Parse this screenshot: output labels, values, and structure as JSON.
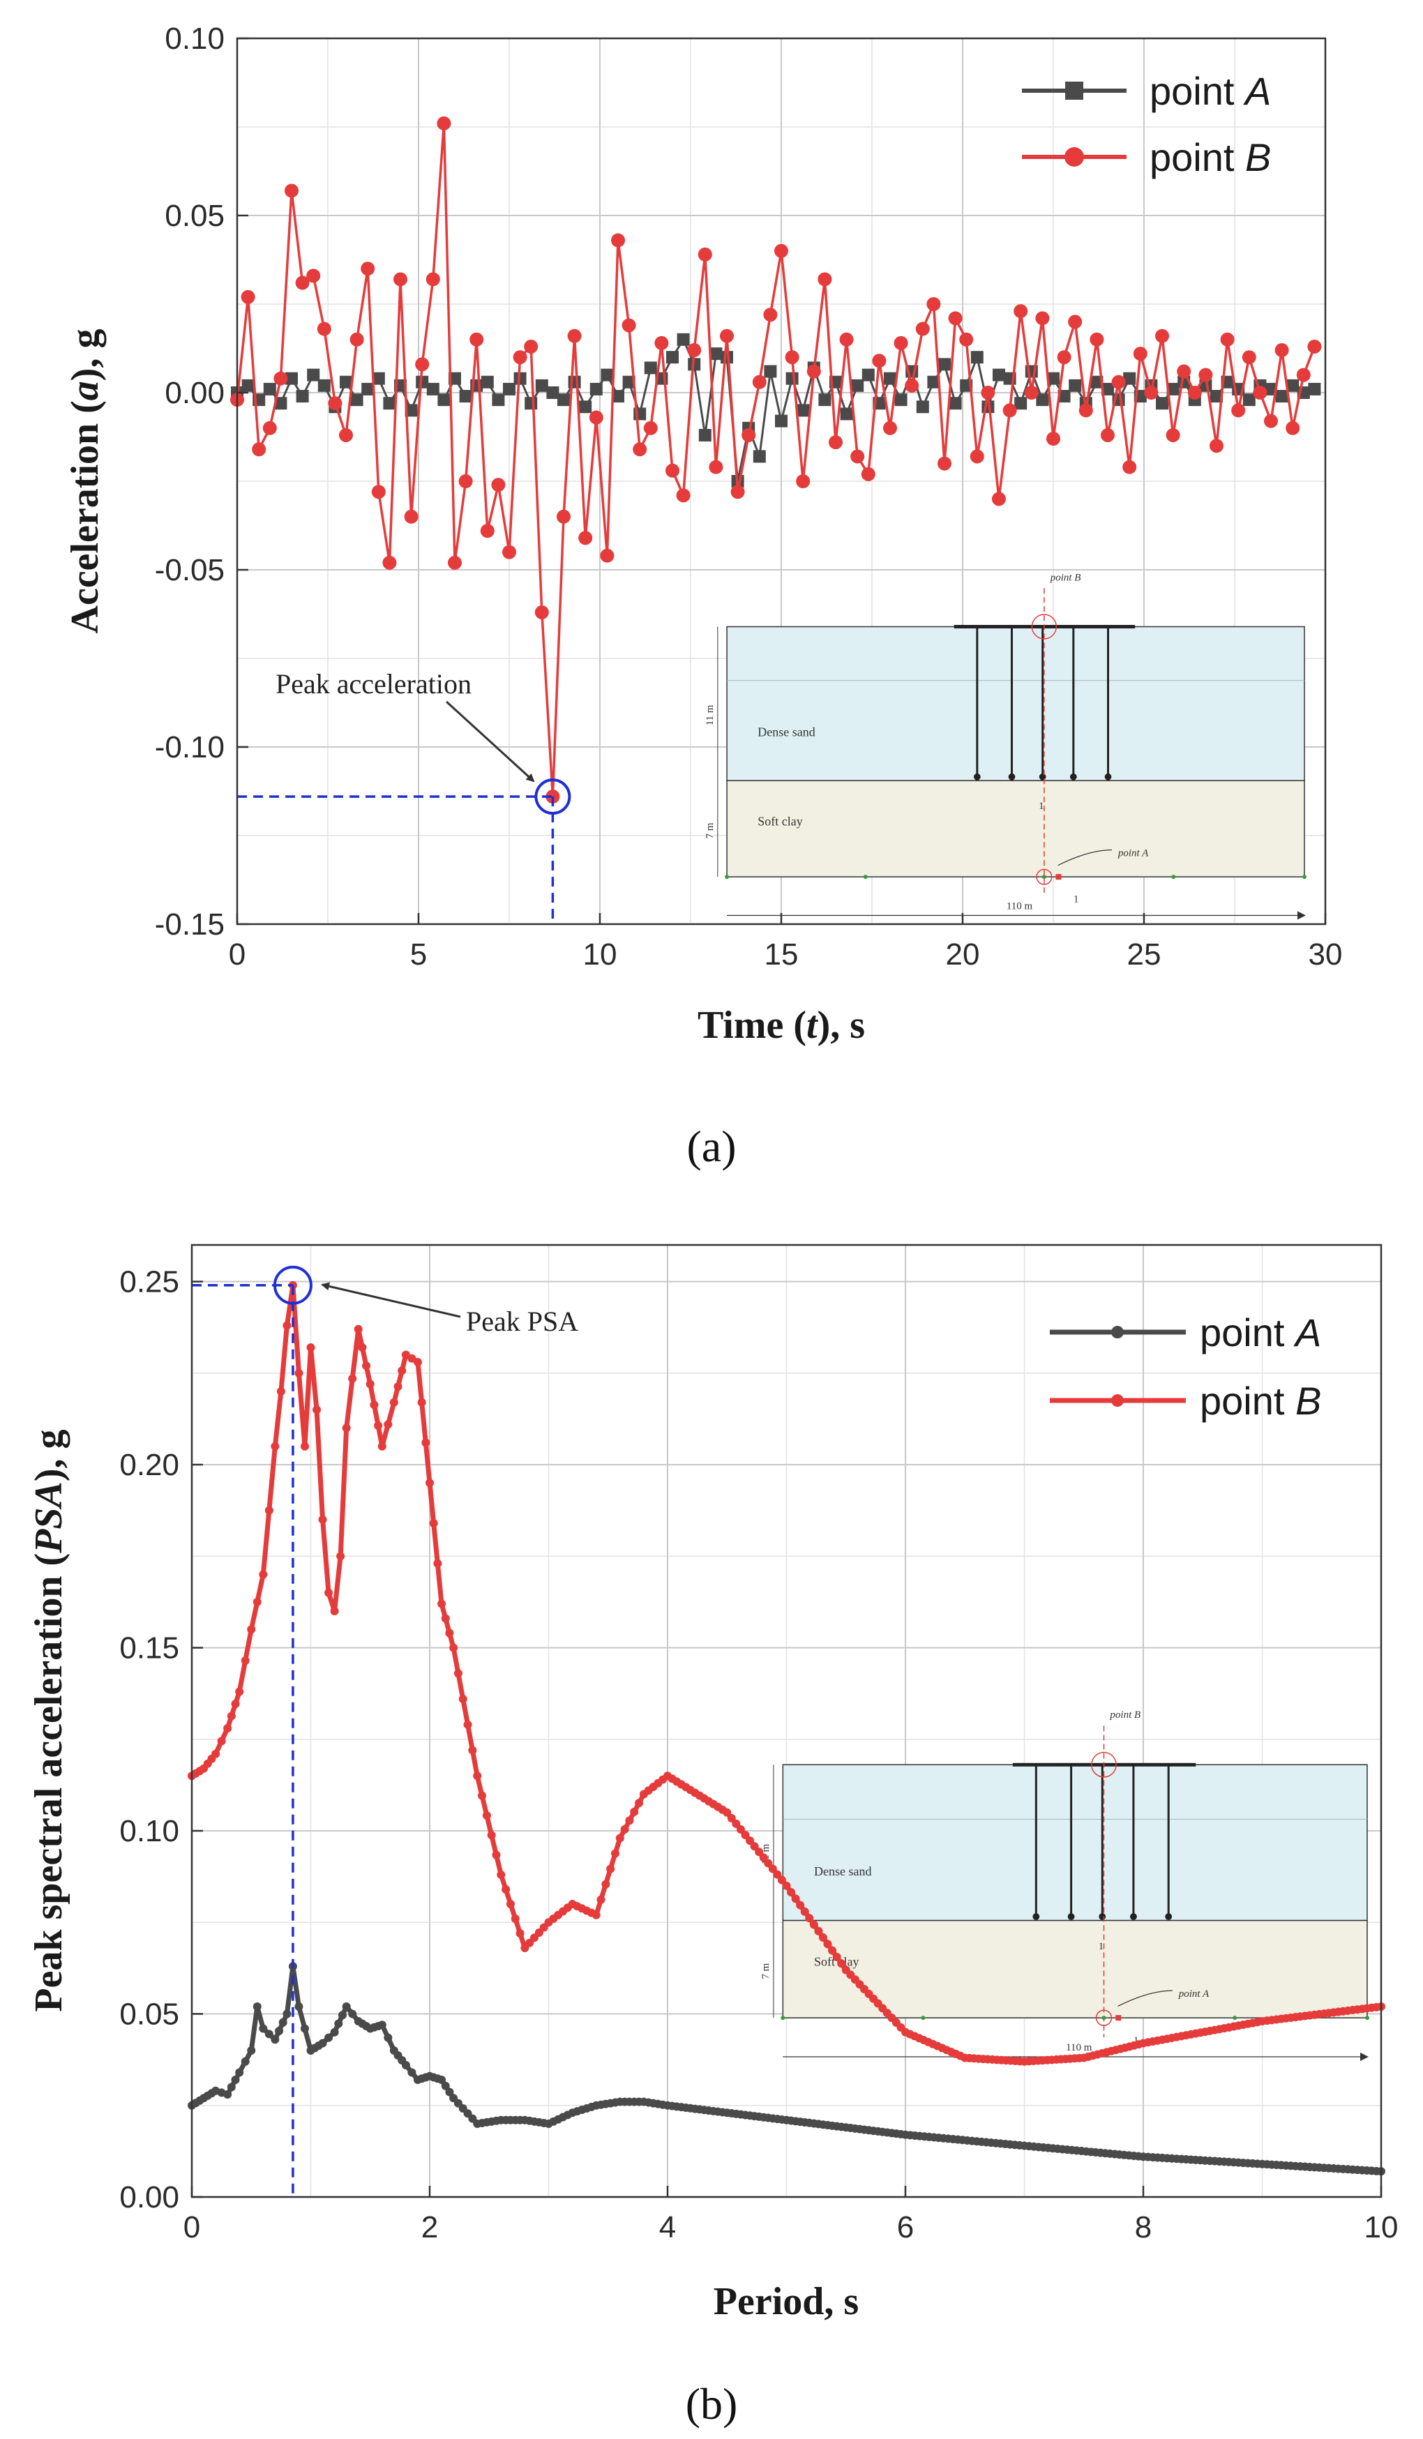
{
  "colors": {
    "point_a": "#4a4a4a",
    "point_b": "#e53b3b",
    "guide": "#1f2fd6",
    "grid": "#c8c8c8",
    "sand": "#dff0f4",
    "clay": "#f1f0e2"
  },
  "chart_data": [
    {
      "type": "line",
      "panel_label": "(a)",
      "xlabel_parts": [
        "Time (",
        "t",
        "), s"
      ],
      "ylabel_parts": [
        "Acceleration (",
        "a",
        "), g"
      ],
      "xlim": [
        0,
        30
      ],
      "ylim": [
        -0.15,
        0.1
      ],
      "x_ticks": [
        "0",
        "5",
        "10",
        "15",
        "20",
        "25",
        "30"
      ],
      "y_ticks": [
        "-0.15",
        "-0.10",
        "-0.05",
        "0.00",
        "0.05",
        "0.10"
      ],
      "grid": true,
      "legend": {
        "placement": "top-right",
        "entries": [
          {
            "prefix": "point ",
            "italic": "A"
          },
          {
            "prefix": "point ",
            "italic": "B"
          }
        ]
      },
      "annotation": {
        "text": "Peak acceleration",
        "x": 8.7,
        "y": -0.114
      },
      "inset": {
        "point_b": "point B",
        "point_a": "point A",
        "dense_sand": "Dense sand",
        "soft_clay": "Soft clay",
        "depth_sand": "11 m",
        "depth_clay": "7 m",
        "width": "110 m",
        "marker_1a": "1",
        "marker_1b": "1"
      },
      "series": [
        {
          "name": "point A",
          "x": [
            0.0,
            0.3,
            0.6,
            0.9,
            1.2,
            1.5,
            1.8,
            2.1,
            2.4,
            2.7,
            3.0,
            3.3,
            3.6,
            3.9,
            4.2,
            4.5,
            4.8,
            5.1,
            5.4,
            5.7,
            6.0,
            6.3,
            6.6,
            6.9,
            7.2,
            7.5,
            7.8,
            8.1,
            8.4,
            8.7,
            9.0,
            9.3,
            9.6,
            9.9,
            10.2,
            10.5,
            10.8,
            11.1,
            11.4,
            11.7,
            12.0,
            12.3,
            12.6,
            12.9,
            13.2,
            13.5,
            13.8,
            14.1,
            14.4,
            14.7,
            15.0,
            15.3,
            15.6,
            15.9,
            16.2,
            16.5,
            16.8,
            17.1,
            17.4,
            17.7,
            18.0,
            18.3,
            18.6,
            18.9,
            19.2,
            19.5,
            19.8,
            20.1,
            20.4,
            20.7,
            21.0,
            21.3,
            21.6,
            21.9,
            22.2,
            22.5,
            22.8,
            23.1,
            23.4,
            23.7,
            24.0,
            24.3,
            24.6,
            24.9,
            25.2,
            25.5,
            25.8,
            26.1,
            26.4,
            26.7,
            27.0,
            27.3,
            27.6,
            27.9,
            28.2,
            28.5,
            28.8,
            29.1,
            29.4,
            29.7
          ],
          "values": [
            0.0,
            0.002,
            -0.002,
            0.001,
            -0.003,
            0.004,
            -0.001,
            0.005,
            0.002,
            -0.004,
            0.003,
            -0.002,
            0.001,
            0.004,
            -0.003,
            0.002,
            -0.005,
            0.003,
            0.001,
            -0.002,
            0.004,
            -0.001,
            0.002,
            0.003,
            -0.002,
            0.001,
            0.004,
            -0.003,
            0.002,
            0.0,
            -0.002,
            0.003,
            -0.004,
            0.001,
            0.005,
            -0.001,
            0.003,
            -0.006,
            0.007,
            0.004,
            0.01,
            0.015,
            0.008,
            -0.012,
            0.011,
            0.01,
            -0.025,
            -0.01,
            -0.018,
            0.006,
            -0.008,
            0.004,
            -0.005,
            0.007,
            -0.002,
            0.003,
            -0.006,
            0.002,
            0.005,
            -0.003,
            0.004,
            -0.002,
            0.006,
            -0.004,
            0.003,
            0.008,
            -0.003,
            0.002,
            0.01,
            -0.004,
            0.005,
            0.004,
            -0.003,
            0.006,
            -0.002,
            0.004,
            -0.001,
            0.002,
            -0.003,
            0.003,
            0.001,
            -0.002,
            0.004,
            -0.001,
            0.002,
            -0.003,
            0.001,
            0.003,
            -0.002,
            0.002,
            -0.001,
            0.003,
            0.001,
            -0.002,
            0.002,
            0.001,
            -0.001,
            0.002,
            0.0,
            0.001
          ]
        },
        {
          "name": "point B",
          "x": [
            0.0,
            0.3,
            0.6,
            0.9,
            1.2,
            1.5,
            1.8,
            2.1,
            2.4,
            2.7,
            3.0,
            3.3,
            3.6,
            3.9,
            4.2,
            4.5,
            4.8,
            5.1,
            5.4,
            5.7,
            6.0,
            6.3,
            6.6,
            6.9,
            7.2,
            7.5,
            7.8,
            8.1,
            8.4,
            8.7,
            9.0,
            9.3,
            9.6,
            9.9,
            10.2,
            10.5,
            10.8,
            11.1,
            11.4,
            11.7,
            12.0,
            12.3,
            12.6,
            12.9,
            13.2,
            13.5,
            13.8,
            14.1,
            14.4,
            14.7,
            15.0,
            15.3,
            15.6,
            15.9,
            16.2,
            16.5,
            16.8,
            17.1,
            17.4,
            17.7,
            18.0,
            18.3,
            18.6,
            18.9,
            19.2,
            19.5,
            19.8,
            20.1,
            20.4,
            20.7,
            21.0,
            21.3,
            21.6,
            21.9,
            22.2,
            22.5,
            22.8,
            23.1,
            23.4,
            23.7,
            24.0,
            24.3,
            24.6,
            24.9,
            25.2,
            25.5,
            25.8,
            26.1,
            26.4,
            26.7,
            27.0,
            27.3,
            27.6,
            27.9,
            28.2,
            28.5,
            28.8,
            29.1,
            29.4,
            29.7
          ],
          "values": [
            -0.002,
            0.027,
            -0.016,
            -0.01,
            0.004,
            0.057,
            0.031,
            0.033,
            0.018,
            -0.003,
            -0.012,
            0.015,
            0.035,
            -0.028,
            -0.048,
            0.032,
            -0.035,
            0.008,
            0.032,
            0.076,
            -0.048,
            -0.025,
            0.015,
            -0.039,
            -0.026,
            -0.045,
            0.01,
            0.013,
            -0.062,
            -0.114,
            -0.035,
            0.016,
            -0.041,
            -0.007,
            -0.046,
            0.043,
            0.019,
            -0.016,
            -0.01,
            0.014,
            -0.022,
            -0.029,
            0.012,
            0.039,
            -0.021,
            0.016,
            -0.028,
            -0.012,
            0.003,
            0.022,
            0.04,
            0.01,
            -0.025,
            0.006,
            0.032,
            -0.014,
            0.015,
            -0.018,
            -0.023,
            0.009,
            -0.01,
            0.014,
            0.002,
            0.018,
            0.025,
            -0.02,
            0.021,
            0.015,
            -0.018,
            0.0,
            -0.03,
            -0.005,
            0.023,
            0.0,
            0.021,
            -0.013,
            0.01,
            0.02,
            -0.005,
            0.015,
            -0.012,
            0.003,
            -0.021,
            0.011,
            0.0,
            0.016,
            -0.012,
            0.006,
            0.0,
            0.005,
            -0.015,
            0.015,
            -0.005,
            0.01,
            0.0,
            -0.008,
            0.012,
            -0.01,
            0.005,
            0.013
          ]
        }
      ]
    },
    {
      "type": "line",
      "panel_label": "(b)",
      "xlabel_parts": [
        "Period, s"
      ],
      "ylabel_parts": [
        "Peak spectral acceleration (",
        "PSA",
        "), g"
      ],
      "xlim": [
        0,
        10
      ],
      "ylim": [
        0,
        0.26
      ],
      "x_ticks": [
        "0",
        "2",
        "4",
        "6",
        "8",
        "10"
      ],
      "y_ticks": [
        "0.00",
        "0.05",
        "0.10",
        "0.15",
        "0.20",
        "0.25"
      ],
      "grid": true,
      "legend": {
        "placement": "top-right",
        "entries": [
          {
            "prefix": "point ",
            "italic": "A"
          },
          {
            "prefix": "point ",
            "italic": "B"
          }
        ]
      },
      "annotation": {
        "text": "Peak PSA",
        "x": 0.85,
        "y": 0.249
      },
      "inset": {
        "point_b": "point B",
        "point_a": "point A",
        "dense_sand": "Dense sand",
        "soft_clay": "Soft clay",
        "depth_sand": "11 m",
        "depth_clay": "7 m",
        "width": "110 m",
        "marker_1a": "1",
        "marker_1b": "1"
      },
      "series": [
        {
          "name": "point A",
          "x": [
            0.0,
            0.1,
            0.2,
            0.3,
            0.4,
            0.5,
            0.55,
            0.6,
            0.7,
            0.8,
            0.85,
            0.9,
            1.0,
            1.1,
            1.2,
            1.3,
            1.4,
            1.5,
            1.6,
            1.7,
            1.8,
            1.9,
            2.0,
            2.1,
            2.2,
            2.4,
            2.6,
            2.8,
            3.0,
            3.2,
            3.4,
            3.6,
            3.8,
            4.0,
            4.5,
            5.0,
            5.5,
            6.0,
            7.0,
            8.0,
            9.0,
            10.0
          ],
          "values": [
            0.025,
            0.027,
            0.029,
            0.028,
            0.034,
            0.04,
            0.052,
            0.046,
            0.043,
            0.05,
            0.063,
            0.052,
            0.04,
            0.042,
            0.045,
            0.052,
            0.048,
            0.046,
            0.047,
            0.04,
            0.036,
            0.032,
            0.033,
            0.032,
            0.027,
            0.02,
            0.021,
            0.021,
            0.02,
            0.023,
            0.025,
            0.026,
            0.026,
            0.025,
            0.023,
            0.021,
            0.019,
            0.017,
            0.014,
            0.011,
            0.009,
            0.007
          ]
        },
        {
          "name": "point B",
          "x": [
            0.0,
            0.1,
            0.2,
            0.3,
            0.4,
            0.5,
            0.6,
            0.7,
            0.75,
            0.8,
            0.85,
            0.9,
            0.95,
            1.0,
            1.05,
            1.1,
            1.15,
            1.2,
            1.25,
            1.3,
            1.4,
            1.5,
            1.6,
            1.7,
            1.8,
            1.9,
            2.0,
            2.1,
            2.2,
            2.4,
            2.6,
            2.8,
            3.0,
            3.2,
            3.4,
            3.6,
            3.8,
            4.0,
            4.5,
            5.0,
            5.5,
            6.0,
            6.5,
            7.0,
            7.5,
            8.0,
            9.0,
            10.0
          ],
          "values": [
            0.115,
            0.117,
            0.121,
            0.128,
            0.138,
            0.155,
            0.17,
            0.205,
            0.22,
            0.238,
            0.249,
            0.225,
            0.205,
            0.232,
            0.215,
            0.185,
            0.165,
            0.16,
            0.175,
            0.21,
            0.237,
            0.222,
            0.205,
            0.217,
            0.23,
            0.228,
            0.195,
            0.162,
            0.15,
            0.115,
            0.088,
            0.068,
            0.075,
            0.08,
            0.077,
            0.098,
            0.11,
            0.115,
            0.105,
            0.085,
            0.062,
            0.045,
            0.038,
            0.037,
            0.038,
            0.042,
            0.048,
            0.052
          ]
        }
      ]
    }
  ]
}
